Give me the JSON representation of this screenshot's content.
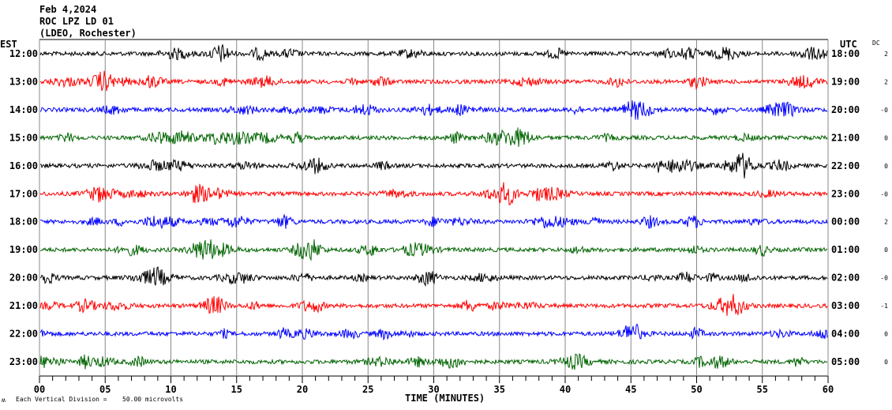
{
  "header": {
    "date": "Feb 4,2024",
    "station": "ROC LPZ LD 01",
    "network": "(LDEO, Rochester)"
  },
  "chart_data": {
    "type": "line",
    "subtype": "helicorder",
    "left_axis_title": "EST",
    "right_axis_title": "UTC",
    "dc_title": "DC",
    "xlabel": "TIME (MINUTES)",
    "xlim": [
      0,
      60
    ],
    "x_ticks": [
      "00",
      "05",
      "10",
      "15",
      "20",
      "25",
      "30",
      "35",
      "40",
      "45",
      "50",
      "55",
      "60"
    ],
    "grid": true,
    "scale_note": "Each Vertical Division =",
    "scale_value": "50.00 microvolts",
    "corner_mark": "ʍ",
    "colors": [
      "#000000",
      "#ff0000",
      "#0000ff",
      "#006400"
    ],
    "rows": [
      {
        "est": "12:00",
        "utc": "18:00",
        "dc": "2"
      },
      {
        "est": "13:00",
        "utc": "19:00",
        "dc": "2"
      },
      {
        "est": "14:00",
        "utc": "20:00",
        "dc": "-0"
      },
      {
        "est": "15:00",
        "utc": "21:00",
        "dc": "0"
      },
      {
        "est": "16:00",
        "utc": "22:00",
        "dc": "0"
      },
      {
        "est": "17:00",
        "utc": "23:00",
        "dc": "-0"
      },
      {
        "est": "18:00",
        "utc": "00:00",
        "dc": "2"
      },
      {
        "est": "19:00",
        "utc": "01:00",
        "dc": "0"
      },
      {
        "est": "20:00",
        "utc": "02:00",
        "dc": "-0"
      },
      {
        "est": "21:00",
        "utc": "03:00",
        "dc": "-1"
      },
      {
        "est": "22:00",
        "utc": "04:00",
        "dc": "0"
      },
      {
        "est": "23:00",
        "utc": "05:00",
        "dc": "0"
      }
    ]
  }
}
